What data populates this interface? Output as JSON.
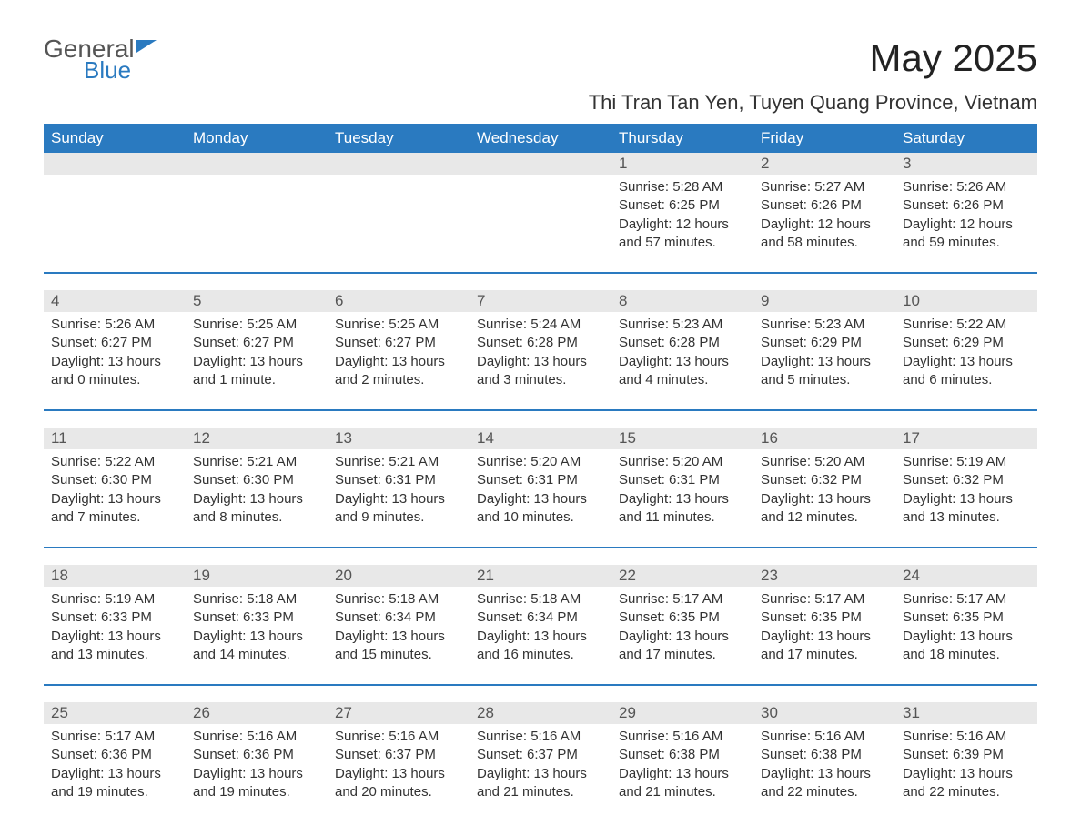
{
  "logo": {
    "general": "General",
    "blue": "Blue"
  },
  "title": "May 2025",
  "location": "Thi Tran Tan Yen, Tuyen Quang Province, Vietnam",
  "weekdays": [
    "Sunday",
    "Monday",
    "Tuesday",
    "Wednesday",
    "Thursday",
    "Friday",
    "Saturday"
  ],
  "colors": {
    "header_bg": "#2a7ac0",
    "header_text": "#ffffff",
    "daynum_bg": "#e8e8e8",
    "separator": "#2a7ac0",
    "body_text": "#333333",
    "logo_gray": "#555555",
    "logo_blue": "#2a7ac0",
    "page_bg": "#ffffff"
  },
  "fonts": {
    "title_size_pt": 32,
    "location_size_pt": 17,
    "weekday_size_pt": 13,
    "daynum_size_pt": 13,
    "cell_size_pt": 11
  },
  "weeks": [
    {
      "days": [
        {
          "num": "",
          "lines": [
            "",
            "",
            "",
            ""
          ]
        },
        {
          "num": "",
          "lines": [
            "",
            "",
            "",
            ""
          ]
        },
        {
          "num": "",
          "lines": [
            "",
            "",
            "",
            ""
          ]
        },
        {
          "num": "",
          "lines": [
            "",
            "",
            "",
            ""
          ]
        },
        {
          "num": "1",
          "lines": [
            "Sunrise: 5:28 AM",
            "Sunset: 6:25 PM",
            "Daylight: 12 hours",
            "and 57 minutes."
          ]
        },
        {
          "num": "2",
          "lines": [
            "Sunrise: 5:27 AM",
            "Sunset: 6:26 PM",
            "Daylight: 12 hours",
            "and 58 minutes."
          ]
        },
        {
          "num": "3",
          "lines": [
            "Sunrise: 5:26 AM",
            "Sunset: 6:26 PM",
            "Daylight: 12 hours",
            "and 59 minutes."
          ]
        }
      ]
    },
    {
      "days": [
        {
          "num": "4",
          "lines": [
            "Sunrise: 5:26 AM",
            "Sunset: 6:27 PM",
            "Daylight: 13 hours",
            "and 0 minutes."
          ]
        },
        {
          "num": "5",
          "lines": [
            "Sunrise: 5:25 AM",
            "Sunset: 6:27 PM",
            "Daylight: 13 hours",
            "and 1 minute."
          ]
        },
        {
          "num": "6",
          "lines": [
            "Sunrise: 5:25 AM",
            "Sunset: 6:27 PM",
            "Daylight: 13 hours",
            "and 2 minutes."
          ]
        },
        {
          "num": "7",
          "lines": [
            "Sunrise: 5:24 AM",
            "Sunset: 6:28 PM",
            "Daylight: 13 hours",
            "and 3 minutes."
          ]
        },
        {
          "num": "8",
          "lines": [
            "Sunrise: 5:23 AM",
            "Sunset: 6:28 PM",
            "Daylight: 13 hours",
            "and 4 minutes."
          ]
        },
        {
          "num": "9",
          "lines": [
            "Sunrise: 5:23 AM",
            "Sunset: 6:29 PM",
            "Daylight: 13 hours",
            "and 5 minutes."
          ]
        },
        {
          "num": "10",
          "lines": [
            "Sunrise: 5:22 AM",
            "Sunset: 6:29 PM",
            "Daylight: 13 hours",
            "and 6 minutes."
          ]
        }
      ]
    },
    {
      "days": [
        {
          "num": "11",
          "lines": [
            "Sunrise: 5:22 AM",
            "Sunset: 6:30 PM",
            "Daylight: 13 hours",
            "and 7 minutes."
          ]
        },
        {
          "num": "12",
          "lines": [
            "Sunrise: 5:21 AM",
            "Sunset: 6:30 PM",
            "Daylight: 13 hours",
            "and 8 minutes."
          ]
        },
        {
          "num": "13",
          "lines": [
            "Sunrise: 5:21 AM",
            "Sunset: 6:31 PM",
            "Daylight: 13 hours",
            "and 9 minutes."
          ]
        },
        {
          "num": "14",
          "lines": [
            "Sunrise: 5:20 AM",
            "Sunset: 6:31 PM",
            "Daylight: 13 hours",
            "and 10 minutes."
          ]
        },
        {
          "num": "15",
          "lines": [
            "Sunrise: 5:20 AM",
            "Sunset: 6:31 PM",
            "Daylight: 13 hours",
            "and 11 minutes."
          ]
        },
        {
          "num": "16",
          "lines": [
            "Sunrise: 5:20 AM",
            "Sunset: 6:32 PM",
            "Daylight: 13 hours",
            "and 12 minutes."
          ]
        },
        {
          "num": "17",
          "lines": [
            "Sunrise: 5:19 AM",
            "Sunset: 6:32 PM",
            "Daylight: 13 hours",
            "and 13 minutes."
          ]
        }
      ]
    },
    {
      "days": [
        {
          "num": "18",
          "lines": [
            "Sunrise: 5:19 AM",
            "Sunset: 6:33 PM",
            "Daylight: 13 hours",
            "and 13 minutes."
          ]
        },
        {
          "num": "19",
          "lines": [
            "Sunrise: 5:18 AM",
            "Sunset: 6:33 PM",
            "Daylight: 13 hours",
            "and 14 minutes."
          ]
        },
        {
          "num": "20",
          "lines": [
            "Sunrise: 5:18 AM",
            "Sunset: 6:34 PM",
            "Daylight: 13 hours",
            "and 15 minutes."
          ]
        },
        {
          "num": "21",
          "lines": [
            "Sunrise: 5:18 AM",
            "Sunset: 6:34 PM",
            "Daylight: 13 hours",
            "and 16 minutes."
          ]
        },
        {
          "num": "22",
          "lines": [
            "Sunrise: 5:17 AM",
            "Sunset: 6:35 PM",
            "Daylight: 13 hours",
            "and 17 minutes."
          ]
        },
        {
          "num": "23",
          "lines": [
            "Sunrise: 5:17 AM",
            "Sunset: 6:35 PM",
            "Daylight: 13 hours",
            "and 17 minutes."
          ]
        },
        {
          "num": "24",
          "lines": [
            "Sunrise: 5:17 AM",
            "Sunset: 6:35 PM",
            "Daylight: 13 hours",
            "and 18 minutes."
          ]
        }
      ]
    },
    {
      "days": [
        {
          "num": "25",
          "lines": [
            "Sunrise: 5:17 AM",
            "Sunset: 6:36 PM",
            "Daylight: 13 hours",
            "and 19 minutes."
          ]
        },
        {
          "num": "26",
          "lines": [
            "Sunrise: 5:16 AM",
            "Sunset: 6:36 PM",
            "Daylight: 13 hours",
            "and 19 minutes."
          ]
        },
        {
          "num": "27",
          "lines": [
            "Sunrise: 5:16 AM",
            "Sunset: 6:37 PM",
            "Daylight: 13 hours",
            "and 20 minutes."
          ]
        },
        {
          "num": "28",
          "lines": [
            "Sunrise: 5:16 AM",
            "Sunset: 6:37 PM",
            "Daylight: 13 hours",
            "and 21 minutes."
          ]
        },
        {
          "num": "29",
          "lines": [
            "Sunrise: 5:16 AM",
            "Sunset: 6:38 PM",
            "Daylight: 13 hours",
            "and 21 minutes."
          ]
        },
        {
          "num": "30",
          "lines": [
            "Sunrise: 5:16 AM",
            "Sunset: 6:38 PM",
            "Daylight: 13 hours",
            "and 22 minutes."
          ]
        },
        {
          "num": "31",
          "lines": [
            "Sunrise: 5:16 AM",
            "Sunset: 6:39 PM",
            "Daylight: 13 hours",
            "and 22 minutes."
          ]
        }
      ]
    }
  ]
}
